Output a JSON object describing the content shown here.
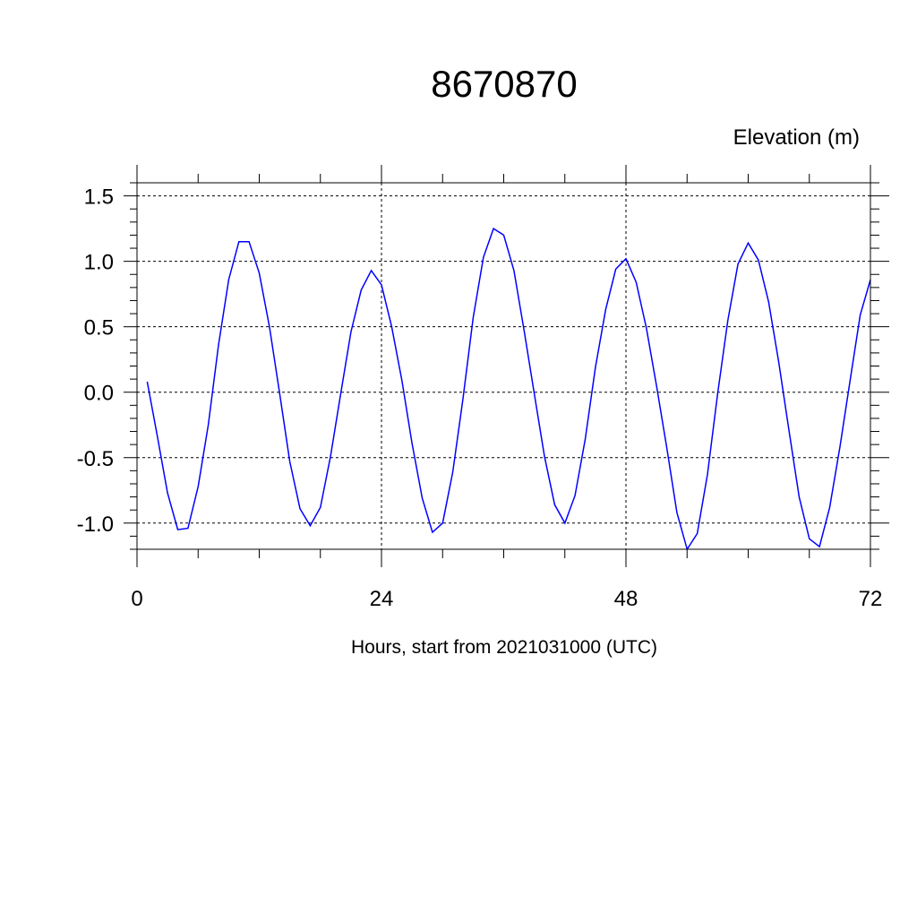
{
  "chart_data": {
    "type": "line",
    "title": "8670870",
    "subtitle": "Elevation (m)",
    "xlabel": "Hours, start from 2021031000 (UTC)",
    "ylabel": "",
    "xlim": [
      0,
      72
    ],
    "ylim": [
      -1.2,
      1.6
    ],
    "xticks": [
      0,
      24,
      48,
      72
    ],
    "xtick_labels": [
      "0",
      "24",
      "48",
      "72"
    ],
    "yticks": [
      -1.0,
      -0.5,
      0.0,
      0.5,
      1.0,
      1.5
    ],
    "ytick_labels": [
      "-1.0",
      "-0.5",
      "0.0",
      "0.5",
      "1.0",
      "1.5"
    ],
    "grid": true,
    "line_color": "#0000ff",
    "series": [
      {
        "x": [
          1,
          2,
          3,
          4,
          5,
          6,
          7,
          8,
          9,
          10,
          11,
          12,
          13,
          14,
          15,
          16,
          17,
          18,
          19,
          20,
          21,
          22,
          23,
          24,
          25,
          26,
          27,
          28,
          29,
          30,
          31,
          32,
          33,
          34,
          35,
          36,
          37,
          38,
          39,
          40,
          41,
          42,
          43,
          44,
          45,
          46,
          47,
          48,
          49,
          50,
          51,
          52,
          53,
          54,
          55,
          56,
          57,
          58,
          59,
          60,
          61,
          62,
          63,
          64,
          65,
          66,
          67,
          68,
          69,
          70,
          71,
          72
        ],
        "y": [
          0.08,
          -0.34,
          -0.77,
          -1.05,
          -1.04,
          -0.72,
          -0.25,
          0.36,
          0.86,
          1.15,
          1.15,
          0.91,
          0.5,
          -0.01,
          -0.53,
          -0.89,
          -1.02,
          -0.88,
          -0.49,
          -0.01,
          0.46,
          0.78,
          0.93,
          0.82,
          0.5,
          0.09,
          -0.39,
          -0.81,
          -1.07,
          -1.0,
          -0.61,
          -0.05,
          0.57,
          1.03,
          1.25,
          1.2,
          0.93,
          0.47,
          -0.01,
          -0.49,
          -0.86,
          -1.0,
          -0.79,
          -0.36,
          0.19,
          0.63,
          0.94,
          1.02,
          0.84,
          0.49,
          0.05,
          -0.42,
          -0.92,
          -1.2,
          -1.08,
          -0.63,
          -0.01,
          0.55,
          0.98,
          1.14,
          1.01,
          0.69,
          0.23,
          -0.29,
          -0.8,
          -1.12,
          -1.18,
          -0.88,
          -0.42,
          0.09,
          0.59,
          0.86
        ]
      }
    ]
  }
}
